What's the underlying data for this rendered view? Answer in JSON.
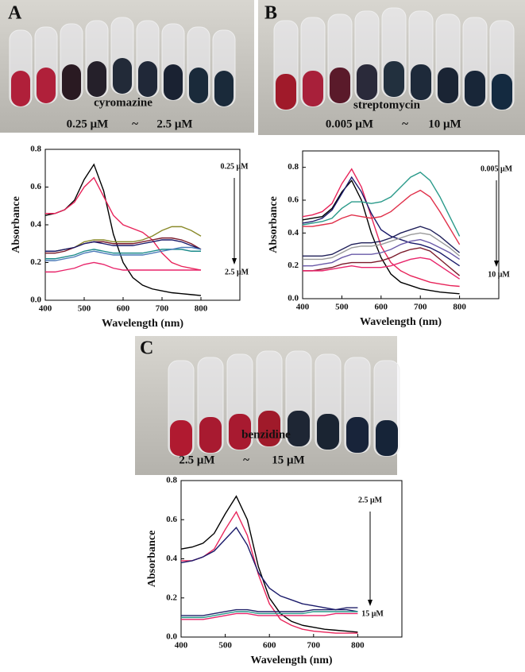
{
  "panels": [
    {
      "letter": "A",
      "compound": "cyromazine",
      "conc_low": "0.25 μM",
      "tilde": "~",
      "conc_high": "2.5 μM"
    },
    {
      "letter": "B",
      "compound": "streptomycin",
      "conc_low": "0.005 μM",
      "tilde": "~",
      "conc_high": "10 μM"
    },
    {
      "letter": "C",
      "compound": "benzidine",
      "conc_low": "2.5 μM",
      "tilde": "~",
      "conc_high": "15 μM"
    }
  ],
  "chart_data": [
    {
      "type": "line",
      "x_label": "Wavelength (nm)",
      "y_label": "Absorbance",
      "annotation_top": "0.25 μM",
      "annotation_bottom": "2.5 μM",
      "x": [
        400,
        425,
        450,
        475,
        500,
        525,
        550,
        575,
        600,
        625,
        650,
        675,
        700,
        725,
        750,
        775,
        800
      ],
      "xlim": [
        400,
        900
      ],
      "xticks": [
        400,
        500,
        600,
        700,
        800
      ],
      "ylim": [
        0,
        0.8
      ],
      "yticks": [
        {
          "value": 0,
          "label": "0.0"
        },
        0.2,
        0.4,
        0.6,
        0.8
      ],
      "series": [
        {
          "color": "#000000",
          "values": [
            0.45,
            0.46,
            0.48,
            0.53,
            0.64,
            0.72,
            0.58,
            0.35,
            0.2,
            0.12,
            0.08,
            0.06,
            0.05,
            0.04,
            0.035,
            0.03,
            0.025
          ]
        },
        {
          "color": "#e8245a",
          "values": [
            0.46,
            0.46,
            0.48,
            0.52,
            0.6,
            0.65,
            0.55,
            0.45,
            0.4,
            0.38,
            0.36,
            0.32,
            0.25,
            0.2,
            0.18,
            0.17,
            0.16
          ]
        },
        {
          "color": "#8a8a2a",
          "values": [
            0.26,
            0.26,
            0.27,
            0.28,
            0.31,
            0.32,
            0.32,
            0.31,
            0.31,
            0.31,
            0.32,
            0.34,
            0.37,
            0.39,
            0.39,
            0.37,
            0.34
          ]
        },
        {
          "color": "#7a1a2a",
          "values": [
            0.25,
            0.25,
            0.26,
            0.28,
            0.3,
            0.31,
            0.31,
            0.3,
            0.3,
            0.3,
            0.31,
            0.32,
            0.33,
            0.33,
            0.32,
            0.3,
            0.27
          ]
        },
        {
          "color": "#1a1a6a",
          "values": [
            0.26,
            0.26,
            0.27,
            0.28,
            0.3,
            0.31,
            0.3,
            0.29,
            0.29,
            0.29,
            0.3,
            0.31,
            0.32,
            0.32,
            0.31,
            0.29,
            0.27
          ]
        },
        {
          "color": "#1a8a8a",
          "values": [
            0.22,
            0.22,
            0.23,
            0.24,
            0.26,
            0.27,
            0.26,
            0.25,
            0.25,
            0.25,
            0.25,
            0.26,
            0.27,
            0.27,
            0.27,
            0.26,
            0.26
          ]
        },
        {
          "color": "#4a7ab8",
          "values": [
            0.21,
            0.21,
            0.22,
            0.23,
            0.25,
            0.26,
            0.25,
            0.24,
            0.24,
            0.24,
            0.24,
            0.25,
            0.26,
            0.27,
            0.28,
            0.28,
            0.27
          ]
        },
        {
          "color": "#e8246a",
          "values": [
            0.15,
            0.15,
            0.16,
            0.17,
            0.19,
            0.2,
            0.19,
            0.17,
            0.16,
            0.16,
            0.16,
            0.16,
            0.16,
            0.16,
            0.16,
            0.16,
            0.16
          ]
        }
      ]
    },
    {
      "type": "line",
      "x_label": "Wavelength (nm)",
      "y_label": "Absorbance",
      "annotation_top": "0.005 μM",
      "annotation_bottom": "10 μM",
      "x": [
        400,
        425,
        450,
        475,
        500,
        525,
        550,
        575,
        600,
        625,
        650,
        675,
        700,
        725,
        750,
        775,
        800
      ],
      "xlim": [
        400,
        900
      ],
      "xticks": [
        400,
        500,
        600,
        700,
        800
      ],
      "ylim": [
        0,
        0.9
      ],
      "yticks": [
        {
          "value": 0,
          "label": "0.0"
        },
        0.2,
        0.4,
        0.6,
        0.8
      ],
      "series": [
        {
          "color": "#000000",
          "values": [
            0.48,
            0.49,
            0.5,
            0.55,
            0.65,
            0.72,
            0.6,
            0.4,
            0.25,
            0.15,
            0.1,
            0.08,
            0.06,
            0.05,
            0.04,
            0.035,
            0.03
          ]
        },
        {
          "color": "#e8245a",
          "values": [
            0.5,
            0.51,
            0.53,
            0.58,
            0.7,
            0.79,
            0.68,
            0.5,
            0.32,
            0.22,
            0.17,
            0.14,
            0.12,
            0.1,
            0.09,
            0.08,
            0.075
          ]
        },
        {
          "color": "#1a1a6a",
          "values": [
            0.46,
            0.47,
            0.49,
            0.54,
            0.64,
            0.74,
            0.65,
            0.52,
            0.42,
            0.38,
            0.36,
            0.34,
            0.33,
            0.31,
            0.28,
            0.24,
            0.2
          ]
        },
        {
          "color": "#2a9a8a",
          "values": [
            0.45,
            0.46,
            0.47,
            0.49,
            0.55,
            0.59,
            0.59,
            0.58,
            0.59,
            0.62,
            0.68,
            0.74,
            0.77,
            0.72,
            0.62,
            0.5,
            0.38
          ]
        },
        {
          "color": "#e0304a",
          "values": [
            0.44,
            0.44,
            0.45,
            0.46,
            0.49,
            0.51,
            0.5,
            0.49,
            0.5,
            0.53,
            0.58,
            0.63,
            0.66,
            0.62,
            0.53,
            0.43,
            0.33
          ]
        },
        {
          "color": "#20205a",
          "values": [
            0.26,
            0.26,
            0.26,
            0.27,
            0.3,
            0.33,
            0.34,
            0.34,
            0.35,
            0.37,
            0.4,
            0.42,
            0.44,
            0.42,
            0.38,
            0.33,
            0.28
          ]
        },
        {
          "color": "#9a9a9a",
          "values": [
            0.24,
            0.24,
            0.24,
            0.25,
            0.28,
            0.31,
            0.32,
            0.32,
            0.33,
            0.35,
            0.37,
            0.39,
            0.4,
            0.39,
            0.35,
            0.31,
            0.26
          ]
        },
        {
          "color": "#6a5aa8",
          "values": [
            0.2,
            0.2,
            0.21,
            0.22,
            0.25,
            0.27,
            0.27,
            0.27,
            0.28,
            0.3,
            0.33,
            0.35,
            0.36,
            0.34,
            0.31,
            0.28,
            0.24
          ]
        },
        {
          "color": "#7a1a2a",
          "values": [
            0.17,
            0.17,
            0.18,
            0.19,
            0.21,
            0.22,
            0.22,
            0.22,
            0.23,
            0.25,
            0.28,
            0.3,
            0.31,
            0.29,
            0.24,
            0.19,
            0.14
          ]
        },
        {
          "color": "#e8246a",
          "values": [
            0.17,
            0.17,
            0.17,
            0.18,
            0.19,
            0.2,
            0.19,
            0.19,
            0.19,
            0.2,
            0.22,
            0.24,
            0.25,
            0.24,
            0.2,
            0.16,
            0.12
          ]
        }
      ]
    },
    {
      "type": "line",
      "x_label": "Wavelength (nm)",
      "y_label": "Absorbance",
      "annotation_top": "2.5 μM",
      "annotation_bottom": "15 μM",
      "x": [
        400,
        425,
        450,
        475,
        500,
        525,
        550,
        575,
        600,
        625,
        650,
        675,
        700,
        725,
        750,
        775,
        800
      ],
      "xlim": [
        400,
        900
      ],
      "xticks": [
        400,
        500,
        600,
        700,
        800
      ],
      "ylim": [
        0,
        0.8
      ],
      "yticks": [
        {
          "value": 0,
          "label": "0.0"
        },
        0.2,
        0.4,
        0.6,
        0.8
      ],
      "series": [
        {
          "color": "#000000",
          "values": [
            0.45,
            0.46,
            0.48,
            0.53,
            0.63,
            0.72,
            0.6,
            0.36,
            0.2,
            0.12,
            0.08,
            0.06,
            0.05,
            0.04,
            0.035,
            0.03,
            0.025
          ]
        },
        {
          "color": "#e8245a",
          "values": [
            0.39,
            0.39,
            0.41,
            0.45,
            0.55,
            0.64,
            0.52,
            0.32,
            0.17,
            0.09,
            0.06,
            0.04,
            0.03,
            0.025,
            0.02,
            0.02,
            0.02
          ]
        },
        {
          "color": "#1a1a6a",
          "values": [
            0.38,
            0.39,
            0.41,
            0.44,
            0.5,
            0.56,
            0.47,
            0.33,
            0.25,
            0.21,
            0.19,
            0.17,
            0.16,
            0.15,
            0.14,
            0.14,
            0.13
          ]
        },
        {
          "color": "#22226a",
          "values": [
            0.11,
            0.11,
            0.11,
            0.12,
            0.13,
            0.14,
            0.14,
            0.13,
            0.13,
            0.13,
            0.13,
            0.13,
            0.14,
            0.14,
            0.14,
            0.15,
            0.15
          ]
        },
        {
          "color": "#2a9a8a",
          "values": [
            0.1,
            0.1,
            0.1,
            0.11,
            0.12,
            0.13,
            0.13,
            0.12,
            0.12,
            0.12,
            0.12,
            0.12,
            0.13,
            0.13,
            0.13,
            0.13,
            0.13
          ]
        },
        {
          "color": "#e8246a",
          "values": [
            0.09,
            0.09,
            0.09,
            0.1,
            0.11,
            0.12,
            0.12,
            0.11,
            0.11,
            0.11,
            0.11,
            0.11,
            0.11,
            0.11,
            0.12,
            0.12,
            0.12
          ]
        }
      ]
    }
  ]
}
